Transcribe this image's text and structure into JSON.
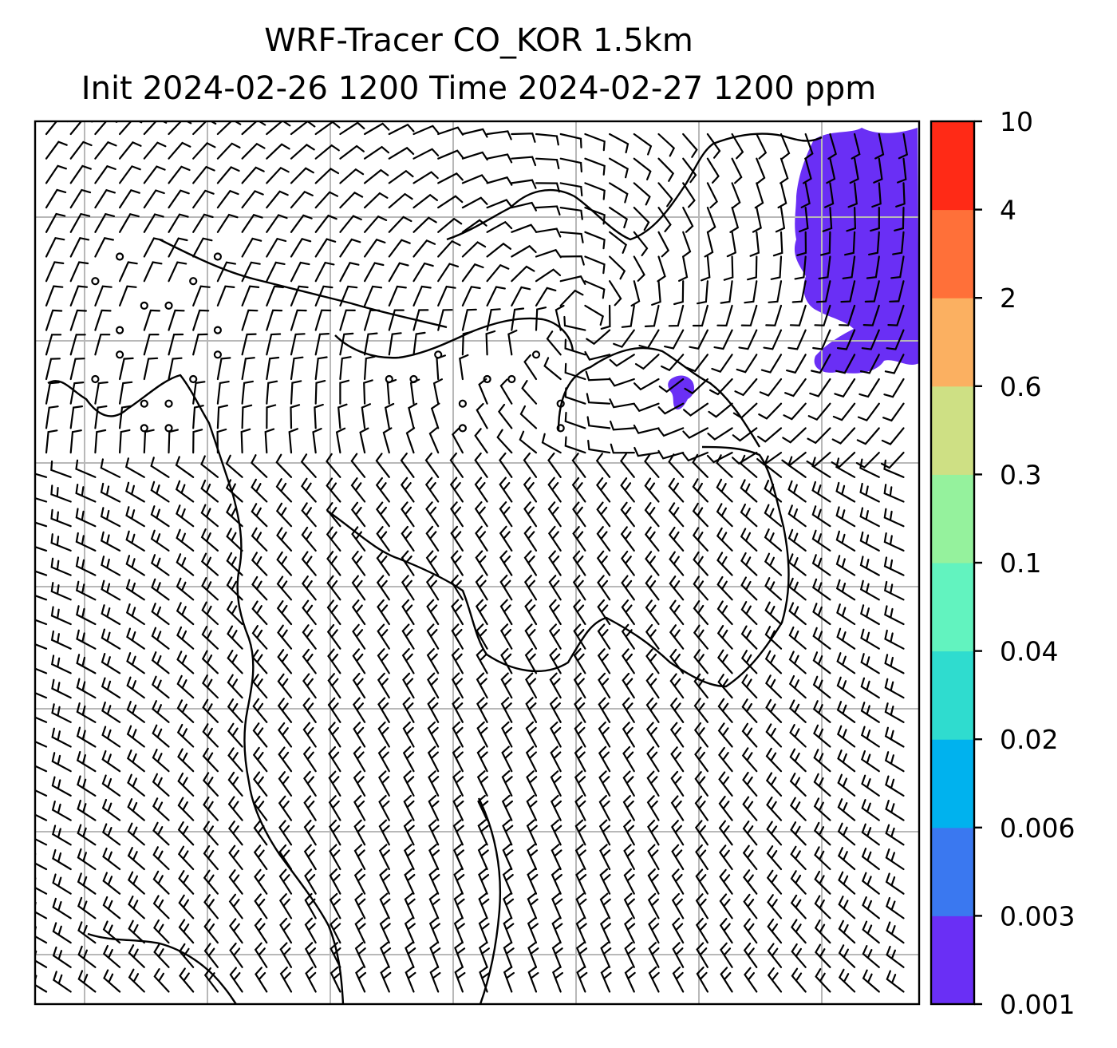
{
  "title": {
    "line1": "WRF-Tracer CO_KOR 1.5km",
    "line2": "Init 2024-02-26 1200 Time 2024-02-27 1200 ppm"
  },
  "chart_data": {
    "type": "heatmap",
    "title": "WRF-Tracer CO_KOR 1.5km",
    "subtitle": "Init 2024-02-26 1200 Time 2024-02-27 1200 ppm",
    "units": "ppm",
    "grid": true,
    "colorbar": {
      "position": "right",
      "levels": [
        "0.001",
        "0.003",
        "0.006",
        "0.02",
        "0.04",
        "0.1",
        "0.3",
        "0.6",
        "2",
        "4",
        "10"
      ],
      "colors": [
        "#6a2ff5",
        "#3a78f0",
        "#00b2ee",
        "#2fdccf",
        "#62f3bf",
        "#95f29d",
        "#cee084",
        "#fbb061",
        "#ff7039",
        "#ff2a16"
      ]
    },
    "features": [
      "wind barbs over the whole domain",
      "coastlines and borders",
      "CO tracer patch 0.001-0.003 ppm in the north-east corner",
      "small CO tracer patch 0.001-0.003 ppm near the centre-right"
    ],
    "filled_level": "0.001-0.003"
  }
}
